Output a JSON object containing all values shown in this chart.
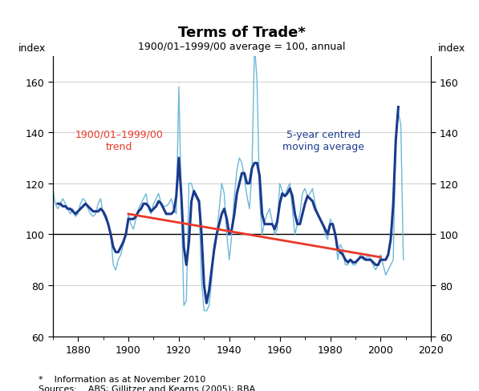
{
  "title": "Terms of Trade*",
  "subtitle": "1900/01–1999/00 average = 100, annual",
  "ylabel_left": "index",
  "ylabel_right": "index",
  "xlim": [
    1870,
    2020
  ],
  "ylim": [
    60,
    170
  ],
  "yticks": [
    60,
    80,
    100,
    120,
    140,
    160
  ],
  "xticks": [
    1880,
    1900,
    1920,
    1940,
    1960,
    1980,
    2000,
    2020
  ],
  "trend_x": [
    1900,
    2000
  ],
  "trend_y": [
    108,
    91
  ],
  "trend_color": "#e8392a",
  "annual_color": "#6db8d8",
  "ma_color": "#1a3a8c",
  "hline_color": "#000000",
  "footnote1": "*    Information as at November 2010",
  "footnote2": "Sources:    ABS; Gillitzer and Kearns (2005); RBA",
  "label_trend": "1900/01–1999/00\ntrend",
  "label_ma": "5-year centred\nmoving average",
  "annual_data_years": [
    1870,
    1871,
    1872,
    1873,
    1874,
    1875,
    1876,
    1877,
    1878,
    1879,
    1880,
    1881,
    1882,
    1883,
    1884,
    1885,
    1886,
    1887,
    1888,
    1889,
    1890,
    1891,
    1892,
    1893,
    1894,
    1895,
    1896,
    1897,
    1898,
    1899,
    1900,
    1901,
    1902,
    1903,
    1904,
    1905,
    1906,
    1907,
    1908,
    1909,
    1910,
    1911,
    1912,
    1913,
    1914,
    1915,
    1916,
    1917,
    1918,
    1919,
    1920,
    1921,
    1922,
    1923,
    1924,
    1925,
    1926,
    1927,
    1928,
    1929,
    1930,
    1931,
    1932,
    1933,
    1934,
    1935,
    1936,
    1937,
    1938,
    1939,
    1940,
    1941,
    1942,
    1943,
    1944,
    1945,
    1946,
    1947,
    1948,
    1949,
    1950,
    1951,
    1952,
    1953,
    1954,
    1955,
    1956,
    1957,
    1958,
    1959,
    1960,
    1961,
    1962,
    1963,
    1964,
    1965,
    1966,
    1967,
    1968,
    1969,
    1970,
    1971,
    1972,
    1973,
    1974,
    1975,
    1976,
    1977,
    1978,
    1979,
    1980,
    1981,
    1982,
    1983,
    1984,
    1985,
    1986,
    1987,
    1988,
    1989,
    1990,
    1991,
    1992,
    1993,
    1994,
    1995,
    1996,
    1997,
    1998,
    1999,
    2000,
    2001,
    2002,
    2003,
    2004,
    2005,
    2006,
    2007,
    2008,
    2009
  ],
  "annual_data_values": [
    118,
    112,
    110,
    112,
    114,
    112,
    110,
    108,
    110,
    107,
    108,
    112,
    114,
    113,
    110,
    108,
    107,
    108,
    112,
    114,
    108,
    106,
    104,
    100,
    88,
    86,
    90,
    92,
    96,
    100,
    108,
    104,
    102,
    106,
    110,
    112,
    114,
    116,
    110,
    108,
    112,
    114,
    116,
    112,
    111,
    111,
    112,
    114,
    110,
    108,
    158,
    112,
    72,
    74,
    120,
    120,
    116,
    114,
    112,
    82,
    70,
    70,
    72,
    82,
    96,
    100,
    110,
    120,
    116,
    100,
    90,
    100,
    115,
    125,
    130,
    128,
    122,
    115,
    110,
    125,
    175,
    160,
    115,
    100,
    105,
    108,
    110,
    105,
    100,
    102,
    120,
    117,
    115,
    118,
    120,
    110,
    100,
    104,
    108,
    116,
    118,
    115,
    116,
    118,
    112,
    108,
    106,
    104,
    100,
    98,
    106,
    104,
    100,
    90,
    96,
    94,
    88,
    88,
    90,
    88,
    88,
    90,
    92,
    90,
    90,
    92,
    90,
    88,
    86,
    88,
    92,
    88,
    84,
    86,
    88,
    90,
    138,
    148,
    143,
    90
  ],
  "ma_data_years": [
    1872,
    1873,
    1874,
    1875,
    1876,
    1877,
    1878,
    1879,
    1880,
    1881,
    1882,
    1883,
    1884,
    1885,
    1886,
    1887,
    1888,
    1889,
    1890,
    1891,
    1892,
    1893,
    1894,
    1895,
    1896,
    1897,
    1898,
    1899,
    1900,
    1901,
    1902,
    1903,
    1904,
    1905,
    1906,
    1907,
    1908,
    1909,
    1910,
    1911,
    1912,
    1913,
    1914,
    1915,
    1916,
    1917,
    1918,
    1919,
    1920,
    1921,
    1922,
    1923,
    1924,
    1925,
    1926,
    1927,
    1928,
    1929,
    1930,
    1931,
    1932,
    1933,
    1934,
    1935,
    1936,
    1937,
    1938,
    1939,
    1940,
    1941,
    1942,
    1943,
    1944,
    1945,
    1946,
    1947,
    1948,
    1949,
    1950,
    1951,
    1952,
    1953,
    1954,
    1955,
    1956,
    1957,
    1958,
    1959,
    1960,
    1961,
    1962,
    1963,
    1964,
    1965,
    1966,
    1967,
    1968,
    1969,
    1970,
    1971,
    1972,
    1973,
    1974,
    1975,
    1976,
    1977,
    1978,
    1979,
    1980,
    1981,
    1982,
    1983,
    1984,
    1985,
    1986,
    1987,
    1988,
    1989,
    1990,
    1991,
    1992,
    1993,
    1994,
    1995,
    1996,
    1997,
    1998,
    1999,
    2000,
    2001,
    2002,
    2003,
    2004,
    2005,
    2006,
    2007
  ],
  "ma_data_values": [
    112,
    112,
    111,
    111,
    110,
    110,
    109,
    108,
    109,
    110,
    111,
    112,
    111,
    110,
    109,
    109,
    109,
    110,
    109,
    107,
    104,
    100,
    95,
    93,
    93,
    95,
    97,
    100,
    106,
    106,
    106,
    107,
    109,
    110,
    112,
    112,
    111,
    109,
    110,
    111,
    113,
    112,
    110,
    108,
    108,
    108,
    109,
    115,
    130,
    115,
    95,
    88,
    97,
    113,
    117,
    115,
    113,
    100,
    80,
    73,
    78,
    86,
    94,
    100,
    104,
    108,
    110,
    106,
    100,
    102,
    108,
    116,
    120,
    124,
    124,
    120,
    120,
    126,
    128,
    128,
    123,
    108,
    104,
    104,
    104,
    104,
    102,
    105,
    112,
    116,
    115,
    116,
    118,
    115,
    108,
    104,
    104,
    108,
    112,
    115,
    114,
    113,
    110,
    108,
    106,
    104,
    102,
    100,
    104,
    104,
    100,
    94,
    93,
    92,
    90,
    89,
    90,
    89,
    89,
    90,
    91,
    91,
    90,
    90,
    90,
    89,
    88,
    88,
    90,
    90,
    90,
    92,
    98,
    112,
    137,
    150
  ]
}
